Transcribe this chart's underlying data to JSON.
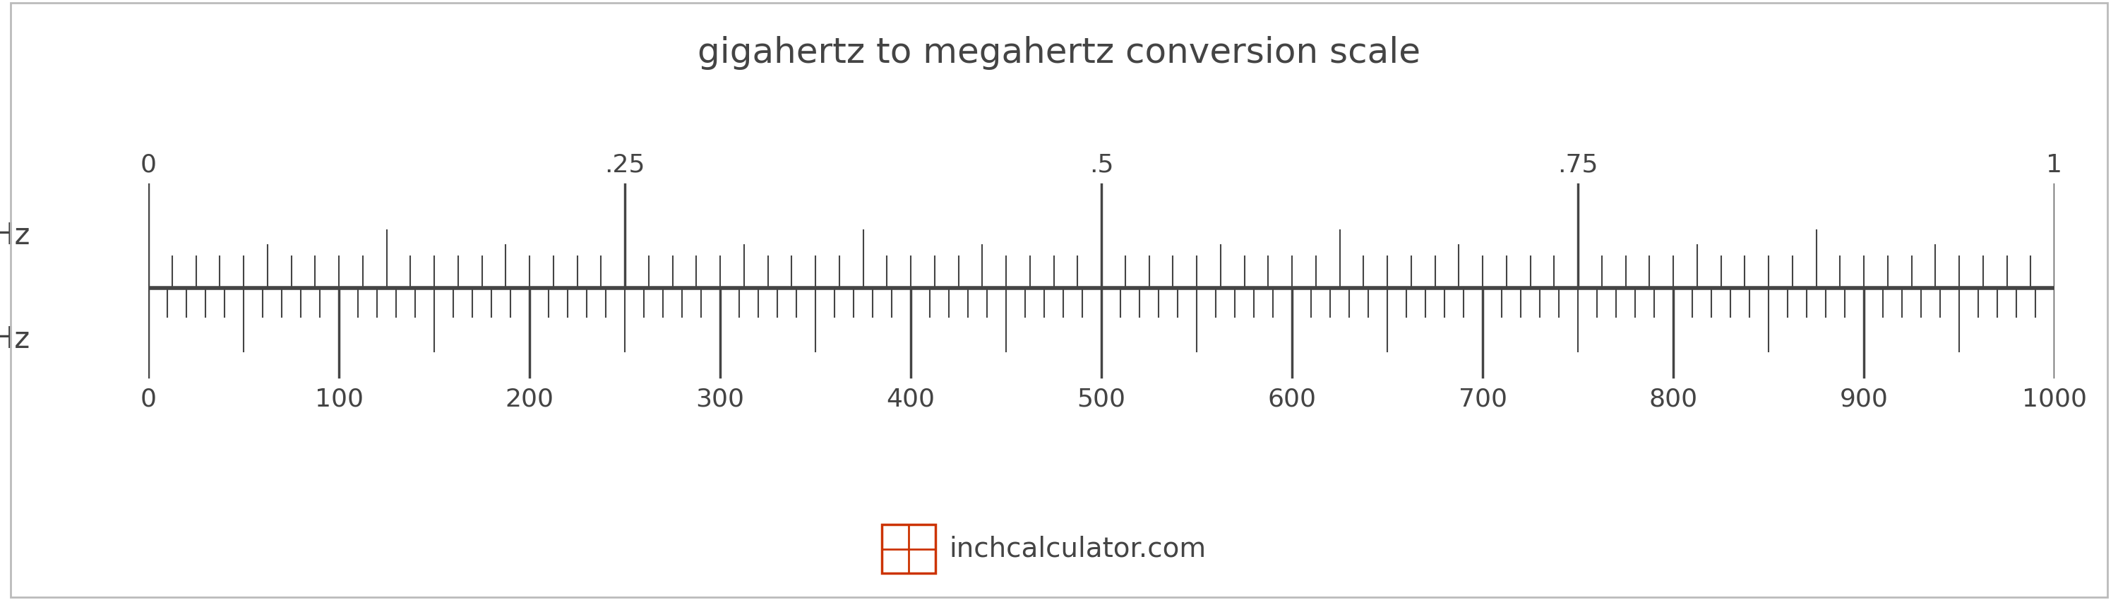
{
  "title": "gigahertz to megahertz conversion scale",
  "title_fontsize": 36,
  "title_color": "#444444",
  "background_color": "#ffffff",
  "border_color": "#bbbbbb",
  "scale_color": "#444444",
  "ghz_label": "GHz",
  "mhz_label": "MHz",
  "label_fontsize": 30,
  "ghz_major_ticks": [
    0,
    0.25,
    0.5,
    0.75,
    1.0
  ],
  "ghz_major_labels": [
    "0",
    ".25",
    ".5",
    ".75",
    "1"
  ],
  "mhz_major_ticks": [
    0,
    100,
    200,
    300,
    400,
    500,
    600,
    700,
    800,
    900,
    1000
  ],
  "tick_label_fontsize": 26,
  "watermark_text": "inchcalculator.com",
  "watermark_fontsize": 28,
  "watermark_color": "#444444",
  "icon_color": "#cc3300"
}
